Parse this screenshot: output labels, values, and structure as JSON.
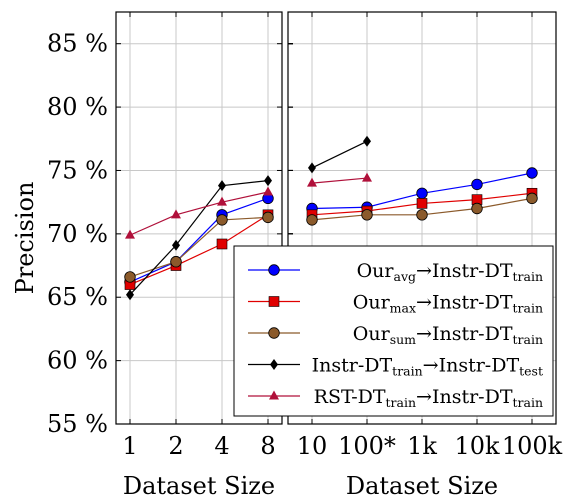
{
  "chart_data": [
    {
      "type": "line",
      "panel": "left",
      "xlabel": "Dataset Size",
      "ylabel": "Precision",
      "categories": [
        "1",
        "2",
        "4",
        "8"
      ],
      "yticks": [
        "55 %",
        "60 %",
        "65 %",
        "70 %",
        "75 %",
        "80 %",
        "85 %"
      ],
      "ylim": [
        55,
        87.5
      ],
      "grid": true,
      "series": [
        {
          "name": "Our_avg→Instr-DT_train",
          "key": "avg",
          "values": [
            66.2,
            67.8,
            71.5,
            72.8
          ]
        },
        {
          "name": "Our_max→Instr-DT_train",
          "key": "max",
          "values": [
            66.0,
            67.5,
            69.2,
            71.5
          ]
        },
        {
          "name": "Our_sum→Instr-DT_train",
          "key": "sum",
          "values": [
            66.6,
            67.8,
            71.1,
            71.3
          ]
        },
        {
          "name": "Instr-DT_train→Instr-DT_test",
          "key": "instr",
          "values": [
            65.2,
            69.1,
            73.8,
            74.2
          ]
        },
        {
          "name": "RST-DT_train→Instr-DT_train",
          "key": "rst",
          "values": [
            69.9,
            71.5,
            72.5,
            73.3
          ]
        }
      ]
    },
    {
      "type": "line",
      "panel": "right",
      "xlabel": "Dataset Size",
      "categories": [
        "10",
        "100*",
        "1k",
        "10k",
        "100k"
      ],
      "ylim": [
        55,
        87.5
      ],
      "grid": true,
      "legend_position": "lower-right",
      "series": [
        {
          "name": "Our_avg→Instr-DT_train",
          "key": "avg",
          "values": [
            72.0,
            72.1,
            73.2,
            73.9,
            74.8
          ]
        },
        {
          "name": "Our_max→Instr-DT_train",
          "key": "max",
          "values": [
            71.5,
            71.8,
            72.4,
            72.7,
            73.2
          ]
        },
        {
          "name": "Our_sum→Instr-DT_train",
          "key": "sum",
          "values": [
            71.1,
            71.5,
            71.5,
            72.0,
            72.8
          ]
        },
        {
          "name": "Instr-DT_train→Instr-DT_test",
          "key": "instr",
          "values": [
            75.2,
            77.3,
            null,
            null,
            null
          ]
        },
        {
          "name": "RST-DT_train→Instr-DT_train",
          "key": "rst",
          "values": [
            74.0,
            74.4,
            null,
            null,
            null
          ]
        }
      ]
    }
  ],
  "legend": [
    {
      "key": "avg",
      "main": "Our",
      "sub": "avg",
      "arrow": "→",
      "target": "Instr-DT",
      "target_sub": "train",
      "color": "#0000ff",
      "marker": "circle"
    },
    {
      "key": "max",
      "main": "Our",
      "sub": "max",
      "arrow": "→",
      "target": "Instr-DT",
      "target_sub": "train",
      "color": "#e00000",
      "marker": "square"
    },
    {
      "key": "sum",
      "main": "Our",
      "sub": "sum",
      "arrow": "→",
      "target": "Instr-DT",
      "target_sub": "train",
      "color": "#8b5a2b",
      "marker": "circle"
    },
    {
      "key": "instr",
      "main": "Instr-DT",
      "sub": "train",
      "arrow": "→",
      "target": "Instr-DT",
      "target_sub": "test",
      "color": "#000000",
      "marker": "diamond"
    },
    {
      "key": "rst",
      "main": "RST-DT",
      "sub": "train",
      "arrow": "→",
      "target": "Instr-DT",
      "target_sub": "train",
      "color": "#b0103a",
      "marker": "triangle"
    }
  ]
}
